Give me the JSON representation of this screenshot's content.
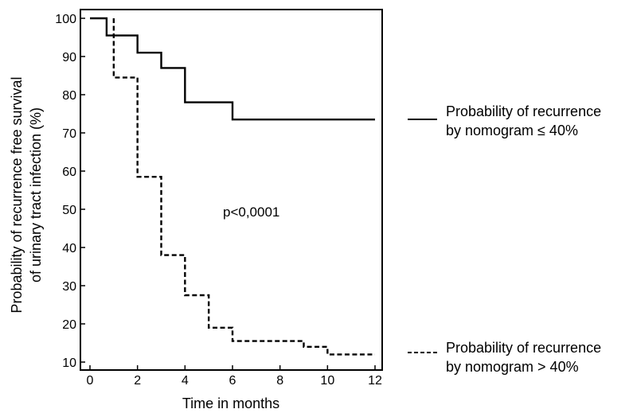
{
  "chart_data": {
    "type": "line",
    "xlabel": "Time in months",
    "ylabel_lines": [
      "Probability of recurrence free survival",
      "of urinary tract infection (%)"
    ],
    "xlim": [
      0,
      12
    ],
    "ylim": [
      10,
      100
    ],
    "xticks": [
      0,
      2,
      4,
      6,
      8,
      10,
      12
    ],
    "yticks": [
      10,
      20,
      30,
      40,
      50,
      60,
      70,
      80,
      90,
      100
    ],
    "grid": false,
    "step": true,
    "annotation": "p<0,0001",
    "series": [
      {
        "name_lines": [
          "Probability of recurrence",
          "by nomogram ≤ 40%"
        ],
        "style": "solid",
        "color": "#000000",
        "x": [
          0,
          0.7,
          2,
          3,
          4,
          6,
          12
        ],
        "y": [
          100,
          95.5,
          91,
          87,
          78,
          73.5,
          73.5
        ]
      },
      {
        "name_lines": [
          "Probability of recurrence",
          "by nomogram > 40%"
        ],
        "style": "dashed",
        "color": "#000000",
        "x": [
          1,
          1,
          2,
          3,
          4,
          5,
          6,
          9,
          10,
          12
        ],
        "y": [
          100,
          84.5,
          58.5,
          38,
          27.5,
          19,
          15.5,
          14,
          12,
          12
        ]
      }
    ]
  }
}
